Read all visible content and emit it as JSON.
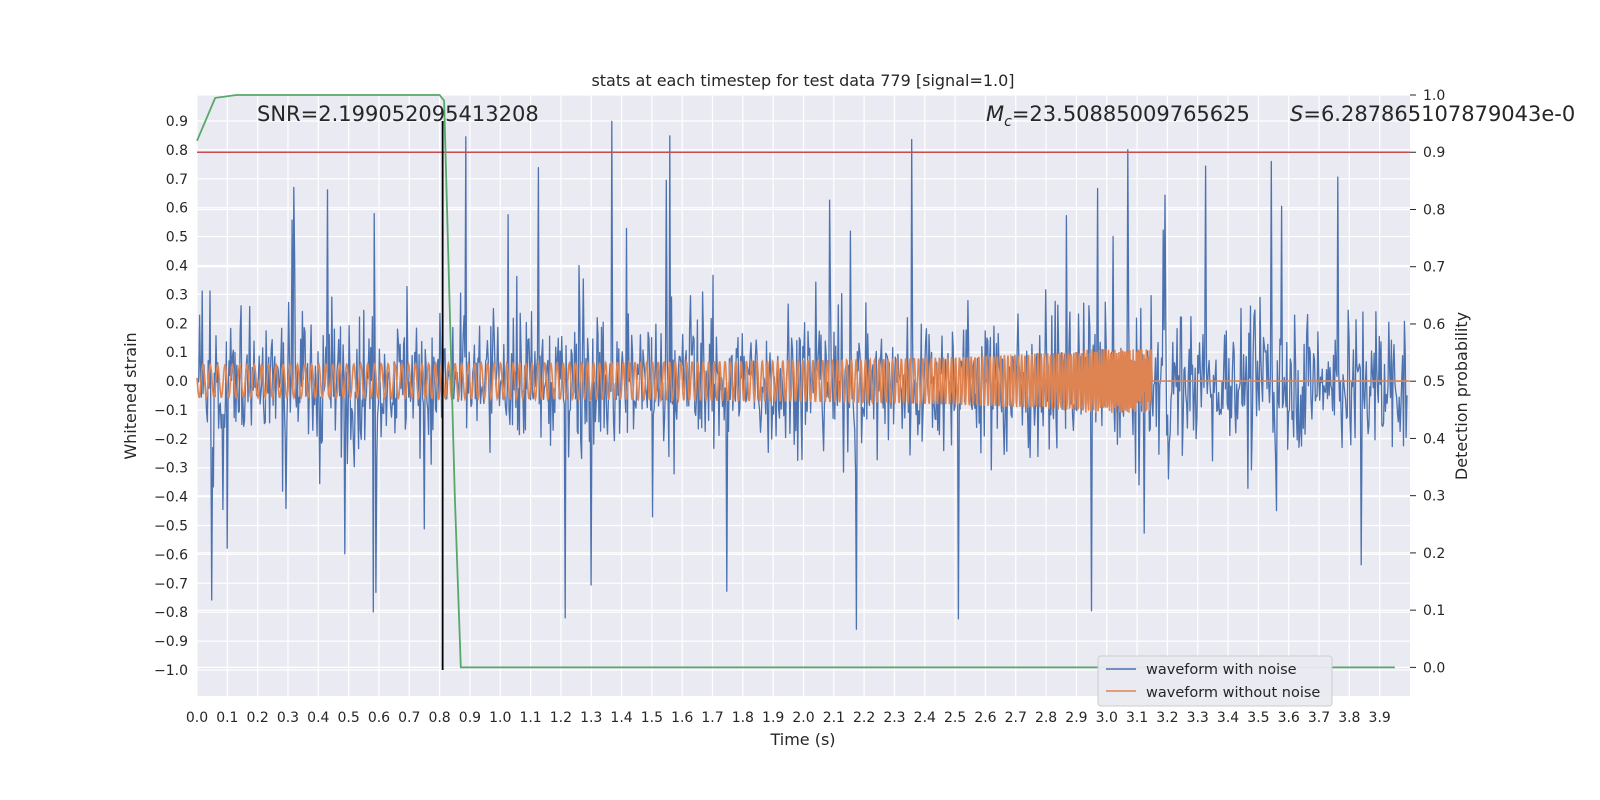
{
  "chart_data": {
    "type": "line",
    "title": "stats at each timestep for test data 779 [signal=1.0]",
    "xlabel": "Time (s)",
    "ylabel": "Whitened strain",
    "ylabel_right": "Detection probability",
    "xlim": [
      0.0,
      4.0
    ],
    "ylim": [
      -1.09,
      0.99
    ],
    "ylim_right": [
      -0.05,
      1.0
    ],
    "x_ticks": [
      "0.0",
      "0.1",
      "0.2",
      "0.3",
      "0.4",
      "0.5",
      "0.6",
      "0.7",
      "0.8",
      "0.9",
      "1.0",
      "1.1",
      "1.2",
      "1.3",
      "1.4",
      "1.5",
      "1.6",
      "1.7",
      "1.8",
      "1.9",
      "2.0",
      "2.1",
      "2.2",
      "2.3",
      "2.4",
      "2.5",
      "2.6",
      "2.7",
      "2.8",
      "2.9",
      "3.0",
      "3.1",
      "3.2",
      "3.3",
      "3.4",
      "3.5",
      "3.6",
      "3.7",
      "3.8",
      "3.9"
    ],
    "y_ticks": [
      "0.9",
      "0.8",
      "0.7",
      "0.6",
      "0.5",
      "0.4",
      "0.3",
      "0.2",
      "0.1",
      "0.0",
      "−0.1",
      "−0.2",
      "−0.3",
      "−0.4",
      "−0.5",
      "−0.6",
      "−0.7",
      "−0.8",
      "−0.9",
      "−1.0"
    ],
    "y_ticks_right": [
      "1.0",
      "0.9",
      "0.8",
      "0.7",
      "0.6",
      "0.5",
      "0.4",
      "0.3",
      "0.2",
      "0.1",
      "0.0"
    ],
    "grid": true,
    "legend_position": "lower-right",
    "annotations": {
      "snr": "SNR=2.199052095413208",
      "mc_sym": "M",
      "mc_sub": "c",
      "mc_val": "=23.50885009765625",
      "s_sym": "S",
      "s_val": "=6.287865107879043e-0"
    },
    "series": [
      {
        "name": "waveform with noise",
        "color": "#4c72b0",
        "style": "dense noise, amplitude ≈ ±0.4 with spikes to ±0.9"
      },
      {
        "name": "waveform without noise",
        "color": "#dd8452",
        "style": "chirp ending near t=3.15 s, peak ±0.1"
      }
    ],
    "detection_probability": {
      "color": "#55a868",
      "x": [
        0.0,
        0.06,
        0.13,
        0.2,
        0.5,
        0.8,
        0.815,
        0.85,
        0.87,
        0.9,
        1.2,
        2.0,
        3.0,
        3.95
      ],
      "y": [
        0.92,
        0.995,
        1.0,
        1.0,
        1.0,
        1.0,
        0.99,
        0.3,
        0.0,
        0.0,
        0.0,
        0.0,
        0.0,
        0.0
      ]
    },
    "threshold_right": {
      "y": 0.9,
      "color": "#c44e52"
    },
    "vertical_marker": {
      "x": 0.81,
      "y_top": 0.9,
      "y_bottom": -1.0,
      "color": "#000000"
    }
  }
}
